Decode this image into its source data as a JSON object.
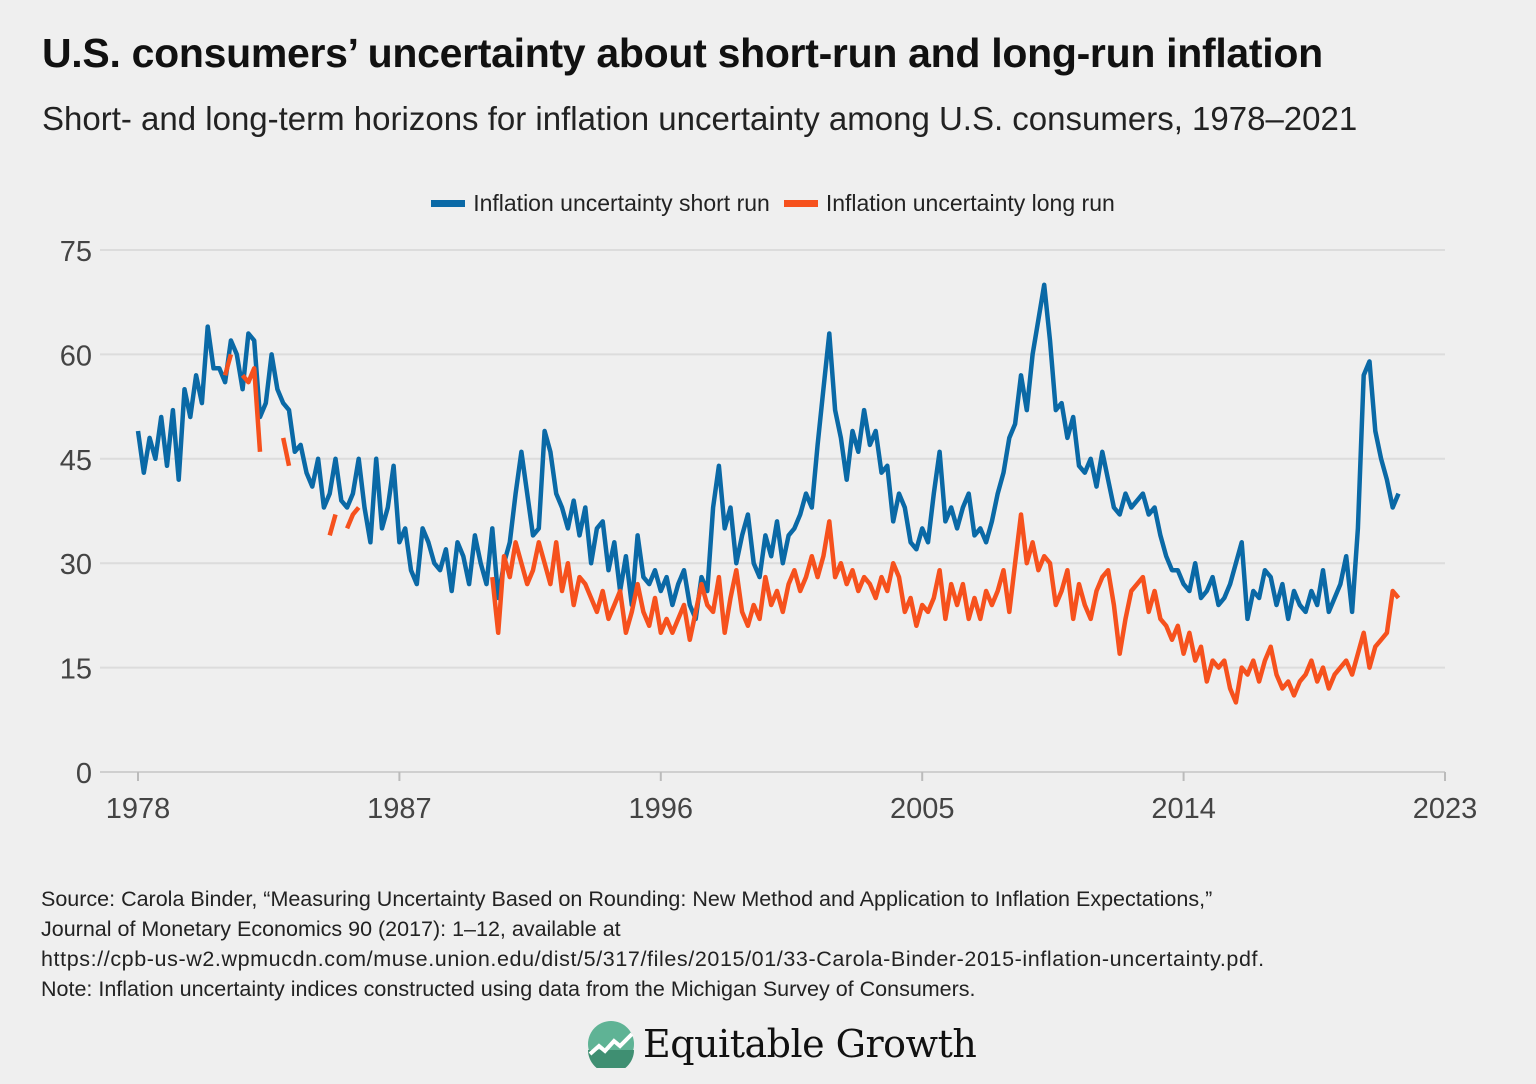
{
  "title": "U.S. consumers’ uncertainty about short-run and long-run inflation",
  "subtitle": "Short- and long-term horizons for inflation uncertainty among U.S. consumers, 1978–2021",
  "source_lines": [
    "Source: Carola Binder, “Measuring Uncertainty Based on Rounding: New Method and Application to Inflation Expectations,”",
    "Journal of Monetary Economics 90 (2017): 1–12, available at",
    "https://cpb-us-w2.wpmucdn.com/muse.union.edu/dist/5/317/files/2015/01/33-Carola-Binder-2015-inflation-uncertainty.pdf.",
    "Note: Inflation uncertainty indices constructed using data from the Michigan Survey of Consumers."
  ],
  "logo_text": "Equitable Growth",
  "chart_data": {
    "type": "line",
    "title": "U.S. consumers’ uncertainty about short-run and long-run inflation",
    "xlabel": "",
    "ylabel": "",
    "xlim": [
      1978,
      2023
    ],
    "ylim": [
      0,
      75
    ],
    "xticks": [
      "1978",
      "1987",
      "1996",
      "2005",
      "2014",
      "2023"
    ],
    "xtick_values": [
      1978,
      1987,
      1996,
      2005,
      2014,
      2023
    ],
    "yticks": [
      "0",
      "15",
      "30",
      "45",
      "60",
      "75"
    ],
    "ytick_values": [
      0,
      15,
      30,
      45,
      60,
      75
    ],
    "grid": true,
    "legend_position": "top-center",
    "series": [
      {
        "name": "Inflation uncertainty short run",
        "color": "#0a69a6",
        "start": 1978.0,
        "step": 0.2,
        "values": [
          49,
          43,
          48,
          45,
          51,
          44,
          52,
          42,
          55,
          51,
          57,
          53,
          64,
          58,
          58,
          56,
          62,
          60,
          55,
          63,
          62,
          51,
          53,
          60,
          55,
          53,
          52,
          46,
          47,
          43,
          41,
          45,
          38,
          40,
          45,
          39,
          38,
          40,
          45,
          38,
          33,
          45,
          35,
          38,
          44,
          33,
          35,
          29,
          27,
          35,
          33,
          30,
          29,
          32,
          26,
          33,
          31,
          27,
          34,
          30,
          27,
          35,
          25,
          30,
          33,
          40,
          46,
          40,
          34,
          35,
          49,
          46,
          40,
          38,
          35,
          39,
          34,
          38,
          30,
          35,
          36,
          29,
          33,
          26,
          31,
          24,
          34,
          28,
          27,
          29,
          26,
          28,
          24,
          27,
          29,
          24,
          22,
          28,
          26,
          38,
          44,
          35,
          38,
          30,
          34,
          37,
          30,
          28,
          34,
          31,
          36,
          30,
          34,
          35,
          37,
          40,
          38,
          47,
          55,
          63,
          52,
          48,
          42,
          49,
          46,
          52,
          47,
          49,
          43,
          44,
          36,
          40,
          38,
          33,
          32,
          35,
          33,
          40,
          46,
          36,
          38,
          35,
          38,
          40,
          34,
          35,
          33,
          36,
          40,
          43,
          48,
          50,
          57,
          52,
          60,
          65,
          70,
          62,
          52,
          53,
          48,
          51,
          44,
          43,
          45,
          41,
          46,
          42,
          38,
          37,
          40,
          38,
          39,
          40,
          37,
          38,
          34,
          31,
          29,
          29,
          27,
          26,
          30,
          25,
          26,
          28,
          24,
          25,
          27,
          30,
          33,
          22,
          26,
          25,
          29,
          28,
          24,
          27,
          22,
          26,
          24,
          23,
          26,
          24,
          29,
          23,
          25,
          27,
          31,
          23,
          35,
          57,
          59,
          49,
          45,
          42,
          38,
          40
        ]
      },
      {
        "name": "Inflation uncertainty long run",
        "color": "#f6511d",
        "start": 1981.0,
        "step": 0.2,
        "values": [
          57,
          60,
          null,
          57,
          56,
          58,
          46,
          null,
          53,
          null,
          48,
          44,
          null,
          40,
          null,
          null,
          46,
          null,
          34,
          37,
          null,
          35,
          37,
          38,
          null,
          null,
          null,
          null,
          null,
          null,
          null,
          null,
          null,
          null,
          null,
          null,
          null,
          null,
          null,
          null,
          null,
          null,
          null,
          null,
          null,
          null,
          28,
          20,
          31,
          28,
          33,
          30,
          27,
          29,
          33,
          30,
          27,
          33,
          26,
          30,
          24,
          28,
          27,
          25,
          23,
          26,
          22,
          24,
          26,
          20,
          23,
          27,
          23,
          21,
          25,
          20,
          22,
          20,
          22,
          24,
          19,
          23,
          27,
          24,
          23,
          28,
          20,
          25,
          29,
          23,
          21,
          24,
          22,
          28,
          24,
          26,
          23,
          27,
          29,
          26,
          28,
          31,
          28,
          31,
          36,
          28,
          30,
          27,
          29,
          26,
          28,
          27,
          25,
          28,
          26,
          30,
          28,
          23,
          25,
          21,
          24,
          23,
          25,
          29,
          22,
          27,
          24,
          27,
          22,
          25,
          22,
          26,
          24,
          26,
          29,
          23,
          30,
          37,
          30,
          33,
          29,
          31,
          30,
          24,
          26,
          29,
          22,
          27,
          24,
          22,
          26,
          28,
          29,
          24,
          17,
          22,
          26,
          27,
          28,
          23,
          26,
          22,
          21,
          19,
          21,
          17,
          20,
          16,
          18,
          13,
          16,
          15,
          16,
          12,
          10,
          15,
          14,
          16,
          13,
          16,
          18,
          14,
          12,
          13,
          11,
          13,
          14,
          16,
          13,
          15,
          12,
          14,
          15,
          16,
          14,
          17,
          20,
          15,
          18,
          19,
          20,
          26,
          25
        ]
      }
    ]
  }
}
